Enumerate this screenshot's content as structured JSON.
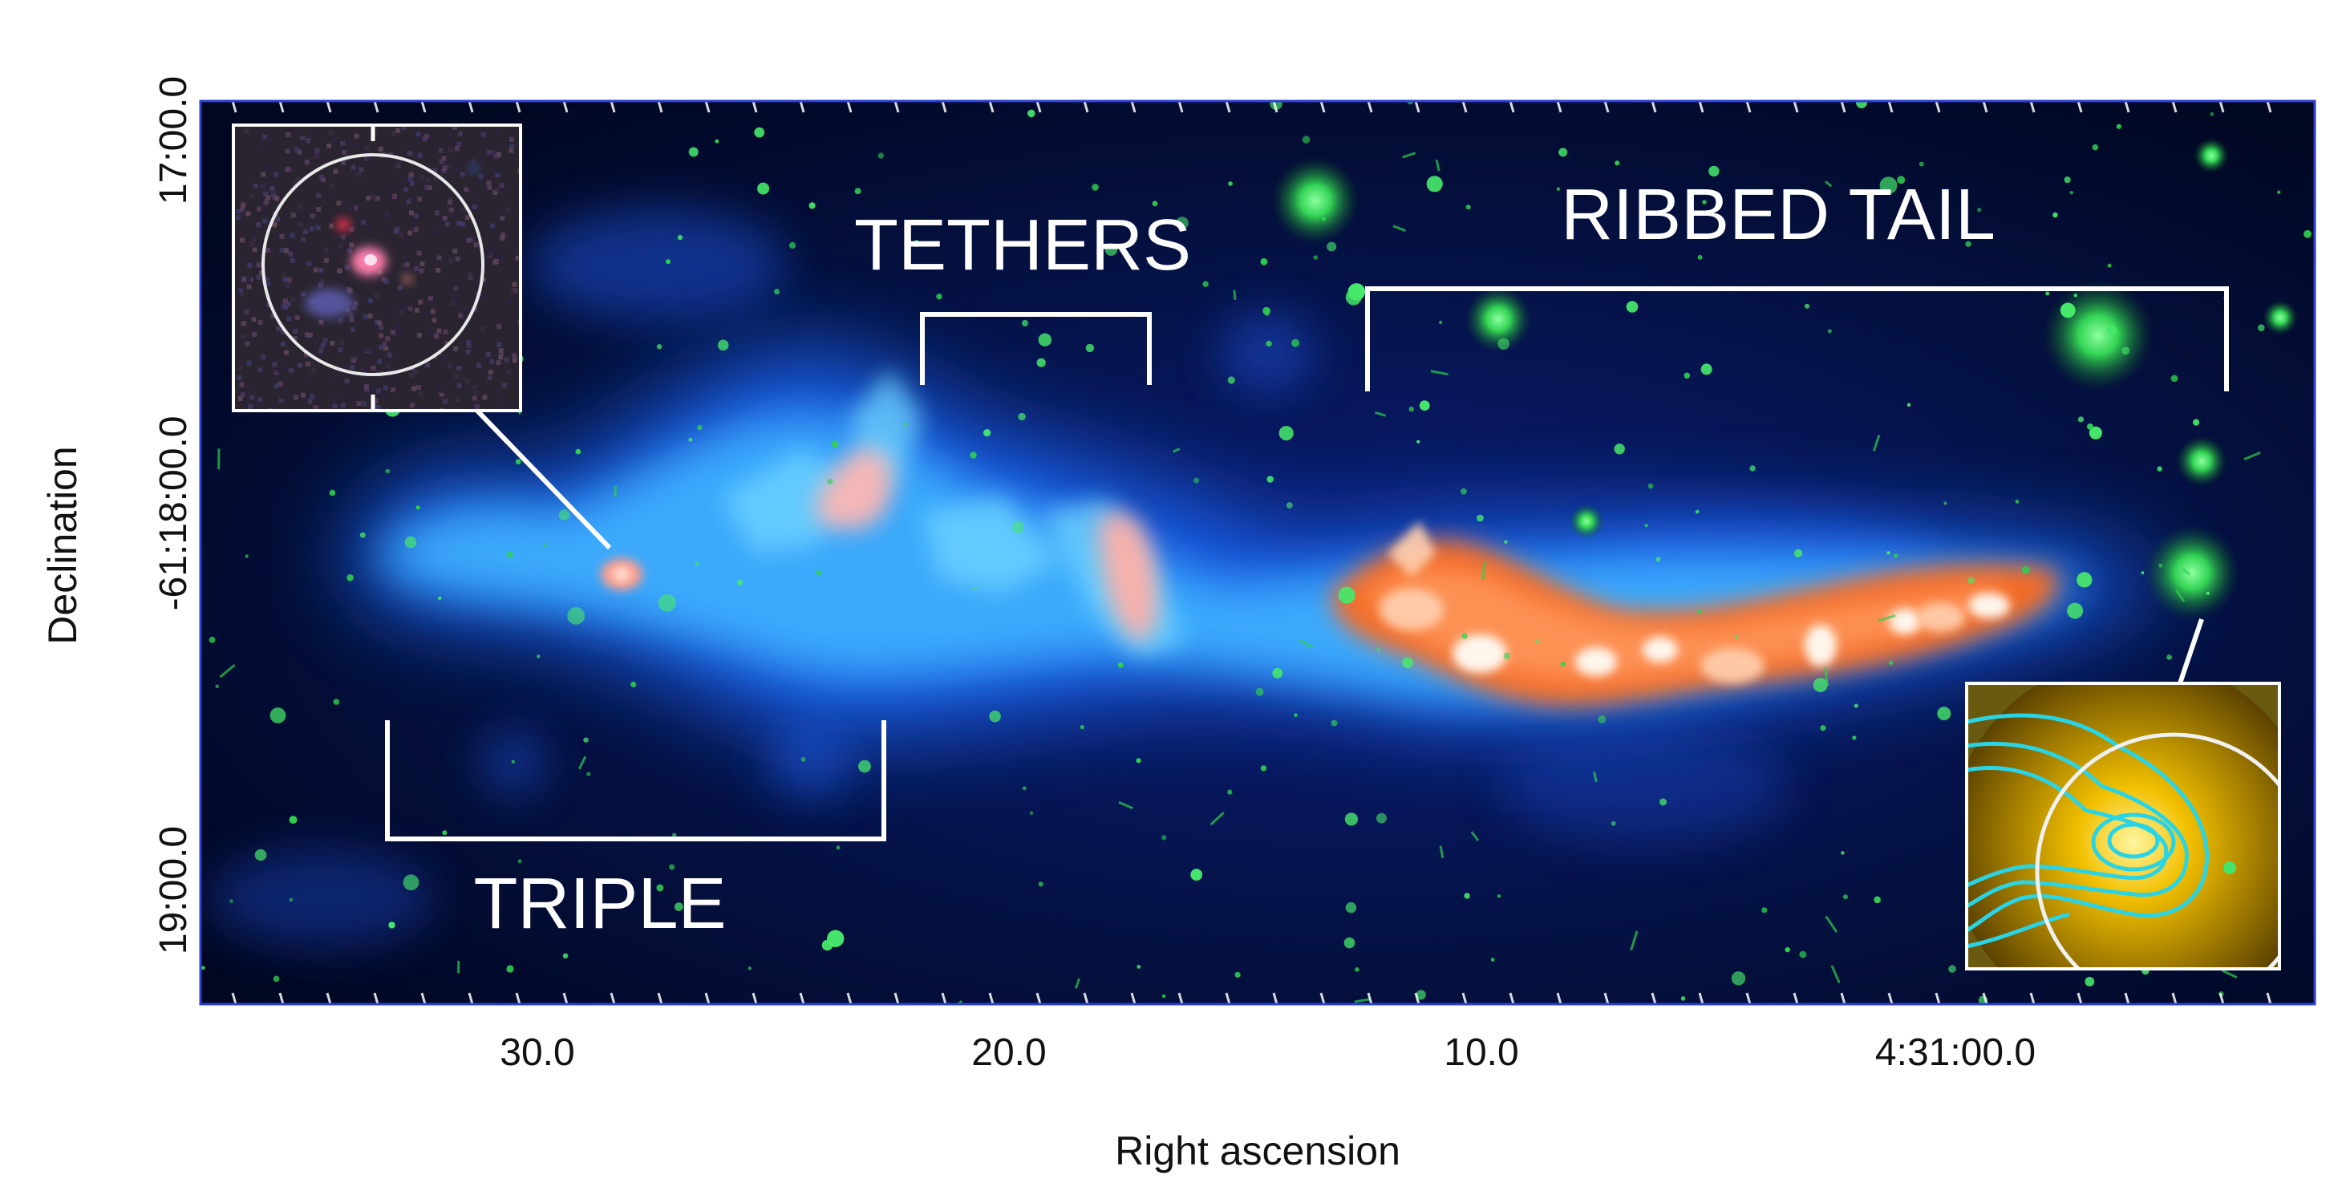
{
  "axes": {
    "x_label": "Right ascension",
    "y_label": "Declination",
    "x_ticks": [
      "30.0",
      "20.0",
      "10.0",
      "4:31:00.0"
    ],
    "y_ticks": [
      "17:00.0",
      "-61:18:00.0",
      "19:00.0"
    ]
  },
  "annotations": {
    "tethers": "TETHERS",
    "ribbed_tail": "RIBBED TAIL",
    "triple": "TRIPLE"
  },
  "colors": {
    "frame": "#2a3fd6",
    "background": "#020a2c",
    "emission_blue": "#2a7bff",
    "emission_cyan": "#58c8ff",
    "emission_orange": "#ff6a1a",
    "emission_core": "#fff4e8",
    "stars": "#35e05a",
    "contours": "#29d4e6"
  },
  "insets": {
    "top_left": "optical host inset",
    "bottom_right": "radio contour inset"
  }
}
